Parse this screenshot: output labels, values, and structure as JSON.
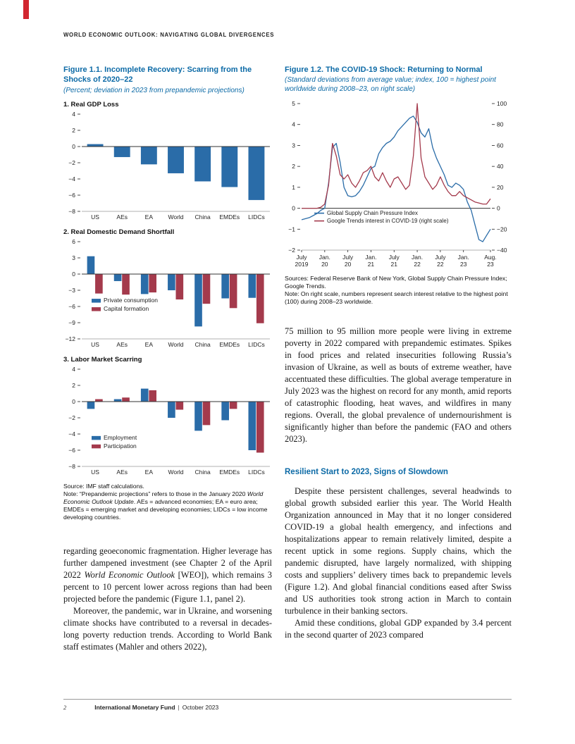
{
  "header": {
    "title": "WORLD ECONOMIC OUTLOOK: NAVIGATING GLOBAL DIVERGENCES"
  },
  "colors": {
    "blue": "#2a6ca8",
    "red": "#a43a4c",
    "heading_blue": "#0c6aa6",
    "tab_red": "#d22630"
  },
  "figure1": {
    "title": "Figure 1.1.  Incomplete Recovery: Scarring from the Shocks of 2020–22",
    "subtitle": "(Percent; deviation in 2023 from prepandemic projections)",
    "source_runs": [
      {
        "t": "Source: IMF staff calculations."
      }
    ],
    "note_runs": [
      {
        "t": "Note: “Prepandemic projections” refers to those in the January 2020 "
      },
      {
        "t": "World Economic Outlook Update",
        "i": true
      },
      {
        "t": ". AEs = advanced economies; EA = euro area; EMDEs = emerging market and developing economies; LIDCs = low income developing countries."
      }
    ]
  },
  "figure2": {
    "title": "Figure 1.2.  The COVID-19 Shock: Returning to Normal",
    "subtitle": "(Standard deviations from average value; index, 100 = highest point worldwide during 2008–23, on right scale)",
    "sources": "Sources: Federal Reserve Bank of New York, Global Supply Chain Pressure Index; Google Trends.",
    "note": "Note: On right scale, numbers represent search interest relative to the highest point (100) during 2008–23 worldwide."
  },
  "chart_data": [
    {
      "type": "bar",
      "title": "1. Real GDP Loss",
      "categories": [
        "US",
        "AEs",
        "EA",
        "World",
        "China",
        "EMDEs",
        "LIDCs"
      ],
      "series": [
        {
          "name": "Real GDP loss",
          "color": "#2a6ca8",
          "values": [
            0.3,
            -1.3,
            -2.2,
            -3.3,
            -4.3,
            -5.0,
            -6.6
          ]
        }
      ],
      "ylim": [
        -8,
        4
      ],
      "ytick": 2,
      "legend": false
    },
    {
      "type": "bar",
      "title": "2. Real Domestic Demand Shortfall",
      "categories": [
        "US",
        "AEs",
        "EA",
        "World",
        "China",
        "EMDEs",
        "LIDCs"
      ],
      "series": [
        {
          "name": "Private consumption",
          "color": "#2a6ca8",
          "values": [
            3.3,
            -1.3,
            -3.7,
            -3.0,
            -9.7,
            -4.5,
            -4.4
          ]
        },
        {
          "name": "Capital formation",
          "color": "#a43a4c",
          "values": [
            -3.6,
            -3.8,
            -3.4,
            -4.7,
            -5.5,
            -6.3,
            -9.1
          ]
        }
      ],
      "ylim": [
        -12,
        6
      ],
      "ytick": 3,
      "legend": true,
      "legend_x": 14,
      "legend_y": 0.62
    },
    {
      "type": "bar",
      "title": "3. Labor Market Scarring",
      "categories": [
        "US",
        "AEs",
        "EA",
        "World",
        "China",
        "EMDEs",
        "LIDCs"
      ],
      "series": [
        {
          "name": "Employment",
          "color": "#2a6ca8",
          "values": [
            -0.9,
            0.3,
            1.6,
            -2.0,
            -3.6,
            -2.3,
            -6.0
          ]
        },
        {
          "name": "Participation",
          "color": "#a43a4c",
          "values": [
            0.3,
            0.5,
            1.4,
            -1.0,
            -2.9,
            -0.9,
            -6.3
          ]
        }
      ],
      "ylim": [
        -8,
        4
      ],
      "ytick": 2,
      "legend": true,
      "legend_x": 14,
      "legend_y": 0.72
    },
    {
      "type": "line",
      "title": "COVID-19 shock indicators",
      "left_ylim": [
        -2,
        5
      ],
      "left_ytick": 1,
      "right_ylim": [
        -40,
        100
      ],
      "right_ytick": 20,
      "right_per_left": 20,
      "x_labels": [
        {
          "i": 0,
          "l1": "July",
          "l2": "2019"
        },
        {
          "i": 6,
          "l1": "Jan.",
          "l2": "20"
        },
        {
          "i": 12,
          "l1": "July",
          "l2": "20"
        },
        {
          "i": 18,
          "l1": "Jan.",
          "l2": "21"
        },
        {
          "i": 24,
          "l1": "July",
          "l2": "21"
        },
        {
          "i": 30,
          "l1": "Jan.",
          "l2": "22"
        },
        {
          "i": 36,
          "l1": "July",
          "l2": "22"
        },
        {
          "i": 42,
          "l1": "Jan.",
          "l2": "23"
        },
        {
          "i": 49,
          "l1": "Aug.",
          "l2": "23"
        }
      ],
      "series": [
        {
          "name": "Global Supply Chain Pressure Index",
          "color": "#2a6ca8",
          "axis": "left",
          "values": [
            -0.55,
            -0.5,
            -0.45,
            -0.35,
            -0.25,
            -0.1,
            0.0,
            1.2,
            2.9,
            3.1,
            2.2,
            1.0,
            0.6,
            0.55,
            0.6,
            0.8,
            1.1,
            1.5,
            1.9,
            2.0,
            2.6,
            2.9,
            3.1,
            3.2,
            3.4,
            3.7,
            3.9,
            4.1,
            4.3,
            4.4,
            4.1,
            3.6,
            3.4,
            3.8,
            2.9,
            2.4,
            2.0,
            1.6,
            1.1,
            1.0,
            1.2,
            1.1,
            0.9,
            0.3,
            -0.1,
            -0.8,
            -1.5,
            -1.6,
            -1.3,
            -1.0
          ]
        },
        {
          "name": "Google Trends interest in COVID-19 (right scale)",
          "color": "#a43a4c",
          "axis": "right",
          "values": [
            0,
            0,
            0,
            0,
            0,
            1,
            4,
            22,
            62,
            50,
            32,
            28,
            32,
            24,
            20,
            26,
            34,
            36,
            40,
            30,
            26,
            34,
            26,
            20,
            28,
            30,
            24,
            18,
            22,
            50,
            100,
            48,
            30,
            24,
            18,
            22,
            30,
            22,
            16,
            12,
            12,
            16,
            12,
            10,
            8,
            6,
            5,
            4,
            4,
            9
          ]
        }
      ]
    }
  ],
  "left_text": {
    "p1": [
      {
        "t": "regarding geoeconomic fragmentation. Higher leverage has further dampened investment (see Chapter 2 of the April 2022 "
      },
      {
        "t": "World Economic Outlook",
        "i": true
      },
      {
        "t": " [WEO]), which remains 3 percent to 10 percent lower across regions than had been projected before the pandemic (Figure 1.1, panel 2)."
      }
    ],
    "p2": [
      {
        "t": "Moreover, the pandemic, war in Ukraine, and worsening climate shocks have contributed to a reversal in decades-long poverty reduction trends. According to World Bank staff estimates (Mahler and others 2022),"
      }
    ]
  },
  "right_text": {
    "p1": [
      {
        "t": "75 million to 95 million more people were living in extreme poverty in 2022 compared with prepandemic estimates. Spikes in food prices and related insecurities following Russia’s invasion of Ukraine, as well as bouts of extreme weather, have accentuated these difficulties. The global average temperature in July 2023 was the highest on record for any month, amid reports of catastrophic flooding, heat waves, and wildfires in many regions. Overall, the global prevalence of undernourishment is significantly higher than before the pandemic (FAO and others 2023)."
      }
    ],
    "heading": "Resilient Start to 2023, Signs of Slowdown",
    "p2": [
      {
        "t": "Despite these persistent challenges, several headwinds to global growth subsided earlier this year. The World Health Organization announced in May that it no longer considered COVID-19 a global health emergency, and infections and hospitalizations appear to remain relatively limited, despite a recent uptick in some regions. Supply chains, which the pandemic disrupted, have largely normalized, with shipping costs and suppliers’ delivery times back to prepandemic levels (Figure 1.2). And global financial conditions eased after Swiss and US authorities took strong action in March to contain turbulence in their banking sectors."
      }
    ],
    "p3": [
      {
        "t": "Amid these conditions, global GDP expanded by 3.4 percent in the second quarter of 2023 compared"
      }
    ]
  },
  "footer": {
    "page_number": "2",
    "publisher": "International Monetary Fund",
    "separator": "|",
    "date": "October 2023"
  }
}
